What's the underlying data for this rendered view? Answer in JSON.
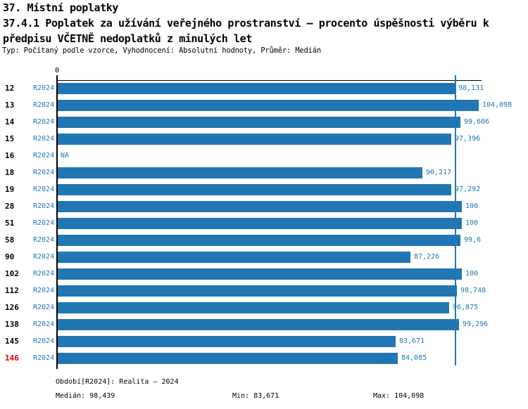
{
  "header": {
    "title1": "37. Místní poplatky",
    "title2_line1": "37.4.1 Poplatek za užívání veřejného prostranství – procento úspěšnosti výběru k",
    "title2_line2": "předpisu VČETNĚ nedoplatků z minulých let",
    "subtitle": "Typ: Počítaný podle vzorce, Vyhodnocení: Absolutní hodnoty, Průměr: Medián"
  },
  "chart_data": {
    "type": "bar",
    "orientation": "horizontal",
    "title": "37.4.1 Poplatek za užívání veřejného prostranství – procento úspěšnosti výběru k předpisu VČETNĚ nedoplatků z minulých let",
    "series_label": "R2024",
    "x_axis_ticks": [
      "0"
    ],
    "xlim": [
      0,
      104.098
    ],
    "grid": false,
    "categories": [
      "12",
      "13",
      "14",
      "15",
      "16",
      "18",
      "19",
      "28",
      "51",
      "58",
      "90",
      "102",
      "112",
      "126",
      "138",
      "145",
      "146"
    ],
    "values": [
      98.131,
      104.098,
      99.606,
      97.396,
      null,
      90.217,
      97.292,
      100,
      100,
      99.6,
      87.226,
      100,
      98.748,
      96.875,
      99.296,
      83.671,
      84.085
    ],
    "value_labels": [
      "98,131",
      "104,098",
      "99,606",
      "97,396",
      "NA",
      "90,217",
      "97,292",
      "100",
      "100",
      "99,6",
      "87,226",
      "100",
      "98,748",
      "96,875",
      "99,296",
      "83,671",
      "84,085"
    ],
    "na_label": "NA",
    "highlighted_category": "146",
    "median": 98.439,
    "min": 83.671,
    "max": 104.098,
    "bar_color": "#2077b4",
    "label_color": "#2077b4",
    "median_line_color": "#2077b4",
    "highlight_color": "#dd0000"
  },
  "footer": {
    "period": "Období[R2024]: Realita – 2024",
    "median": "Medián: 98,439",
    "min": "Min: 83,671",
    "max": "Max: 104,098"
  }
}
